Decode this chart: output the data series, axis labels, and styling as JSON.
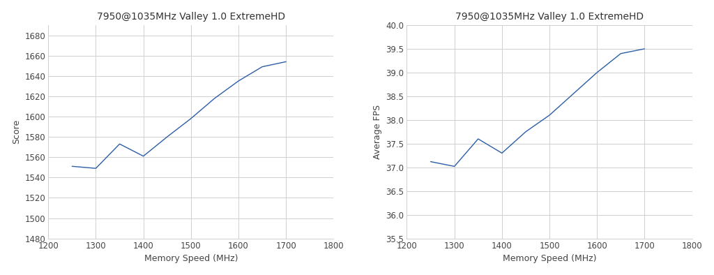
{
  "title": "7950@1035MHz Valley 1.0 ExtremeHD",
  "chart1": {
    "x": [
      1250,
      1300,
      1350,
      1400,
      1450,
      1500,
      1550,
      1600,
      1650,
      1700
    ],
    "y": [
      1551,
      1549,
      1573,
      1561,
      1580,
      1598,
      1618,
      1635,
      1649,
      1654
    ],
    "xlabel": "Memory Speed (MHz)",
    "ylabel": "Score",
    "xlim": [
      1200,
      1800
    ],
    "ylim": [
      1480,
      1690
    ],
    "yticks": [
      1480,
      1500,
      1520,
      1540,
      1560,
      1580,
      1600,
      1620,
      1640,
      1660,
      1680
    ],
    "xticks": [
      1200,
      1300,
      1400,
      1500,
      1600,
      1700,
      1800
    ]
  },
  "chart2": {
    "x": [
      1250,
      1300,
      1350,
      1400,
      1450,
      1500,
      1550,
      1600,
      1650,
      1700
    ],
    "y": [
      37.12,
      37.02,
      37.6,
      37.3,
      37.75,
      38.1,
      38.55,
      39.0,
      39.4,
      39.5
    ],
    "xlabel": "Memory Speed (MHz)",
    "ylabel": "Average FPS",
    "xlim": [
      1200,
      1800
    ],
    "ylim": [
      35.5,
      40.0
    ],
    "yticks": [
      35.5,
      36.0,
      36.5,
      37.0,
      37.5,
      38.0,
      38.5,
      39.0,
      39.5,
      40.0
    ],
    "xticks": [
      1200,
      1300,
      1400,
      1500,
      1600,
      1700,
      1800
    ]
  },
  "line_color": "#2b5ea7",
  "grid_color": "#d0d0d0",
  "bg_color": "#ffffff",
  "title_fontsize": 10,
  "label_fontsize": 9,
  "tick_fontsize": 8.5
}
